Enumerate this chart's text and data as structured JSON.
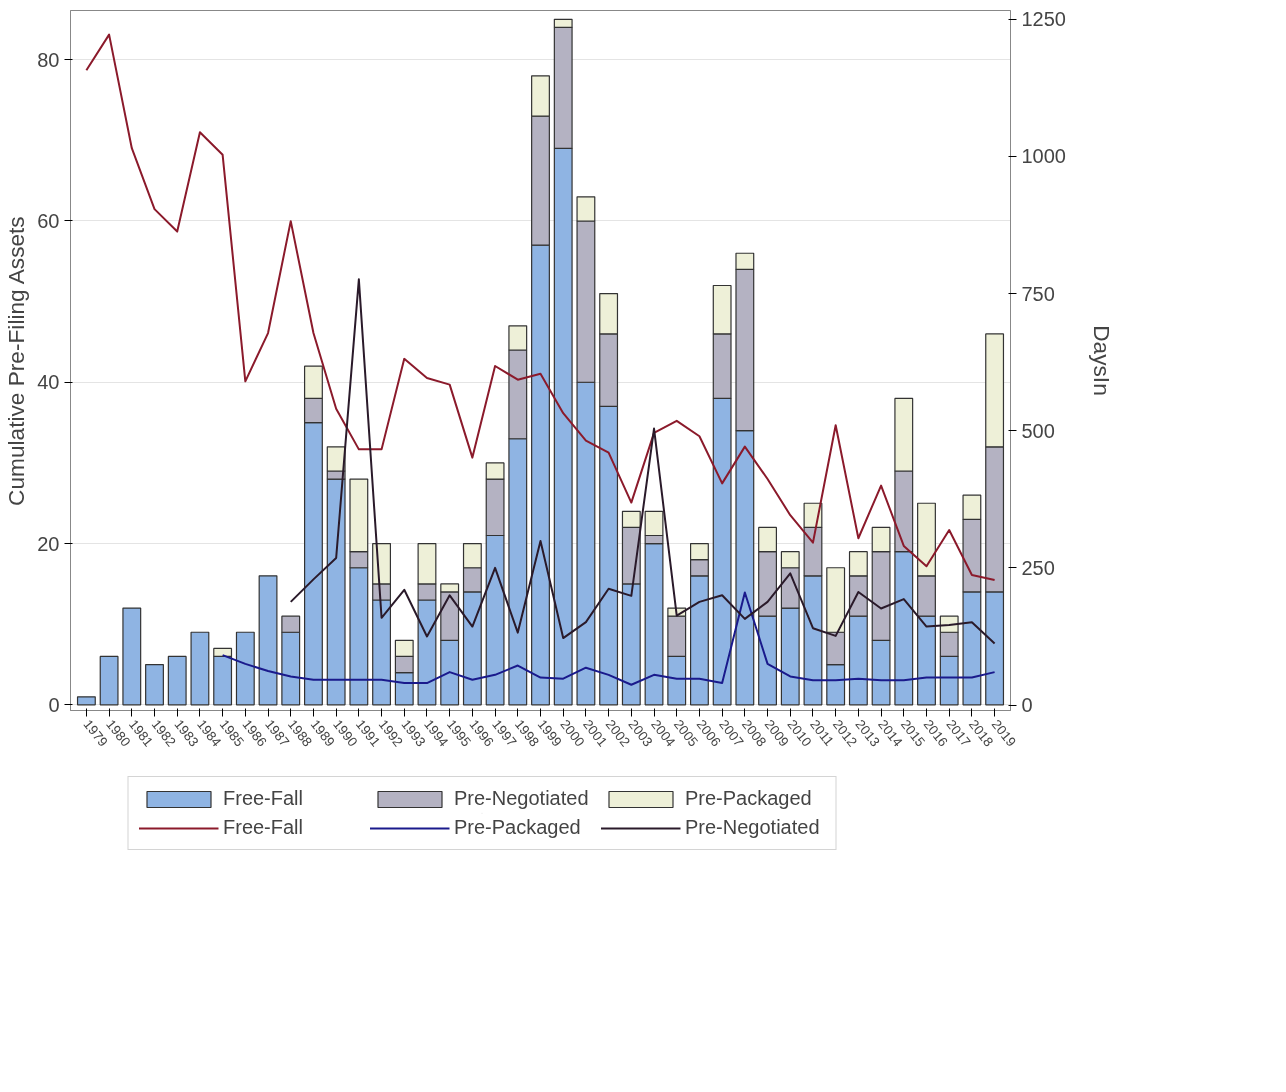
{
  "chart_data": {
    "type": "bar",
    "stacked": true,
    "ylabel": "Cumulative Pre-Filing Assets",
    "y2label": "DaysIn",
    "categories": [
      "1979",
      "1980",
      "1981",
      "1982",
      "1983",
      "1984",
      "1985",
      "1986",
      "1987",
      "1988",
      "1989",
      "1990",
      "1991",
      "1992",
      "1993",
      "1994",
      "1995",
      "1996",
      "1997",
      "1998",
      "1999",
      "2000",
      "2001",
      "2002",
      "2003",
      "2004",
      "2005",
      "2006",
      "2007",
      "2008",
      "2009",
      "2010",
      "2011",
      "2012",
      "2013",
      "2014",
      "2015",
      "2016",
      "2017",
      "2018",
      "2019"
    ],
    "ylim": [
      -0.7,
      86.1
    ],
    "yticks": [
      0,
      20,
      40,
      60,
      80
    ],
    "y2lim": [
      -10,
      1266
    ],
    "y2ticks": [
      0,
      250,
      500,
      750,
      1000,
      1250
    ],
    "grid": "y",
    "legend": "bottom",
    "series": [
      {
        "name": "Free-Fall",
        "color": "#8fb4e3",
        "values": [
          1,
          6,
          12,
          5,
          6,
          9,
          6,
          9,
          16,
          9,
          35,
          28,
          17,
          13,
          4,
          13,
          8,
          14,
          21,
          33,
          57,
          69,
          40,
          37,
          15,
          20,
          6,
          16,
          38,
          34,
          11,
          12,
          16,
          5,
          11,
          8,
          19,
          11,
          6,
          14,
          14
        ]
      },
      {
        "name": "Pre-Negotiated",
        "color": "#b4b2c2",
        "values": [
          0,
          0,
          0,
          0,
          0,
          0,
          0,
          0,
          0,
          2,
          3,
          1,
          2,
          2,
          2,
          2,
          6,
          3,
          7,
          11,
          16,
          15,
          20,
          9,
          7,
          1,
          5,
          2,
          8,
          20,
          8,
          5,
          6,
          4,
          5,
          11,
          10,
          5,
          3,
          9,
          18
        ]
      },
      {
        "name": "Pre-Packaged",
        "color": "#eef0d8",
        "values": [
          0,
          0,
          0,
          0,
          0,
          0,
          1,
          0,
          0,
          0,
          4,
          3,
          9,
          5,
          2,
          5,
          1,
          3,
          2,
          3,
          5,
          1,
          3,
          5,
          2,
          3,
          1,
          2,
          6,
          2,
          3,
          2,
          3,
          8,
          3,
          3,
          9,
          9,
          2,
          3,
          14
        ]
      },
      {
        "name": "Free-Fall",
        "type": "line",
        "axis": "y2",
        "color": "#8b1a2b",
        "values": [
          1157,
          1222,
          1015,
          904,
          863,
          1044,
          1003,
          590,
          678,
          882,
          678,
          540,
          466,
          466,
          631,
          596,
          584,
          451,
          618,
          593,
          604,
          532,
          482,
          460,
          369,
          496,
          518,
          490,
          404,
          471,
          412,
          346,
          296,
          510,
          304,
          400,
          290,
          253,
          319,
          237,
          228
        ]
      },
      {
        "name": "Pre-Packaged",
        "type": "line",
        "axis": "y2",
        "color": "#1a1a8c",
        "values": [
          null,
          null,
          null,
          null,
          null,
          null,
          91,
          75,
          62,
          52,
          46,
          46,
          46,
          46,
          40,
          40,
          60,
          46,
          55,
          72,
          50,
          48,
          68,
          55,
          37,
          55,
          48,
          48,
          40,
          205,
          75,
          52,
          45,
          45,
          48,
          45,
          45,
          50,
          50,
          50,
          60
        ]
      },
      {
        "name": "Pre-Negotiated",
        "type": "line",
        "axis": "y2",
        "color": "#2a1a2a",
        "values": [
          null,
          null,
          null,
          null,
          null,
          null,
          null,
          null,
          null,
          188,
          229,
          268,
          776,
          159,
          210,
          125,
          200,
          143,
          250,
          132,
          299,
          122,
          151,
          212,
          199,
          504,
          163,
          188,
          200,
          157,
          188,
          240,
          140,
          126,
          206,
          176,
          193,
          143,
          146,
          151,
          112
        ]
      }
    ]
  }
}
